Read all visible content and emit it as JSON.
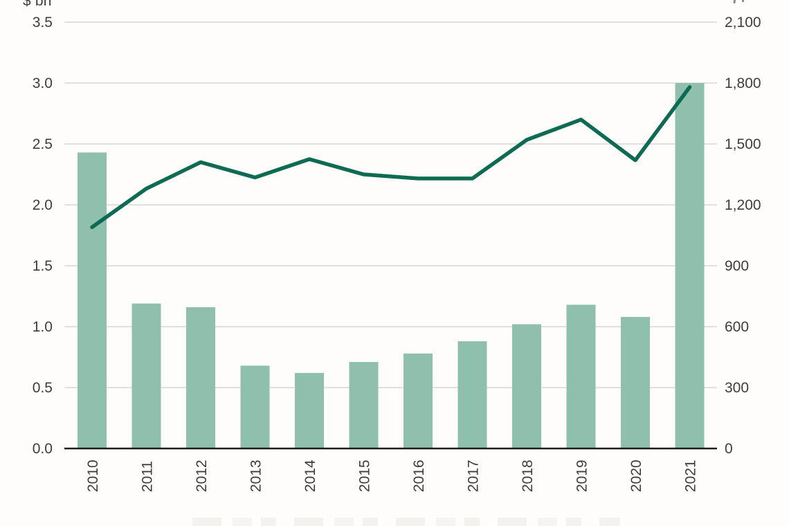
{
  "axes": {
    "left_title": "$ bn",
    "left_ticks": [
      "0.0",
      "0.5",
      "1.0",
      "1.5",
      "2.0",
      "2.5",
      "3.0",
      "3.5"
    ],
    "left_tick_values": [
      0,
      0.5,
      1.0,
      1.5,
      2.0,
      2.5,
      3.0,
      3.5
    ],
    "right_ticks": [
      "0",
      "300",
      "600",
      "900",
      "1,200",
      "1,500",
      "1,800",
      "2,100"
    ],
    "right_tick_values": [
      0,
      300,
      600,
      900,
      1200,
      1500,
      1800,
      2100
    ],
    "right_title_note": "cut off at top edge of image"
  },
  "chart_data": {
    "type": "bar",
    "subtype": "combo-bar-line-dual-axis",
    "categories": [
      "2010",
      "2011",
      "2012",
      "2013",
      "2014",
      "2015",
      "2016",
      "2017",
      "2018",
      "2019",
      "2020",
      "2021"
    ],
    "series": [
      {
        "name": "value-bars",
        "type": "bar",
        "axis": "left",
        "color": "#8ec0ad",
        "values": [
          2.43,
          1.19,
          1.16,
          0.68,
          0.62,
          0.71,
          0.78,
          0.88,
          1.02,
          1.18,
          1.08,
          3.0
        ]
      },
      {
        "name": "count-line",
        "type": "line",
        "axis": "right",
        "color": "#0d6b51",
        "values": [
          1090,
          1280,
          1410,
          1335,
          1425,
          1350,
          1330,
          1330,
          1520,
          1620,
          1420,
          1780
        ]
      }
    ],
    "ylabel": "$ bn",
    "ylim_left": [
      0,
      3.5
    ],
    "ylim_right": [
      0,
      2100
    ],
    "grid": true,
    "legend_position": "cut off below bottom edge (illegible)"
  },
  "colors": {
    "bar": "#8ec0ad",
    "line": "#0d6b51",
    "gridline": "#d8d8d8",
    "baseline": "#1c1c1c",
    "tick_text": "#3d3d3d",
    "background": "#fffdfb"
  }
}
